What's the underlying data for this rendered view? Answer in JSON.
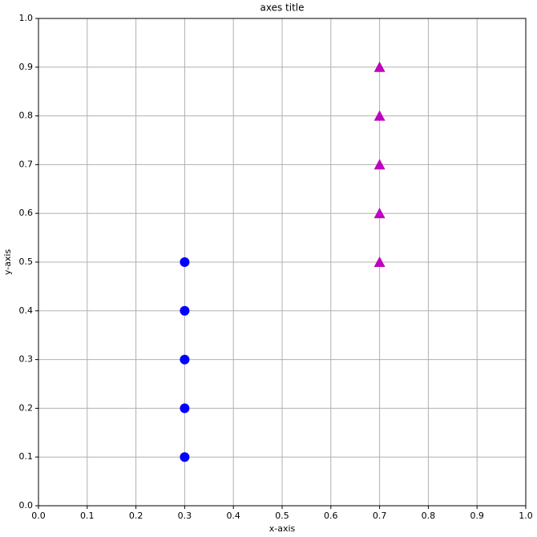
{
  "chart_data": {
    "type": "scatter",
    "title": "axes title",
    "x_label": "x-axis",
    "y_label": "y-axis",
    "series": [
      {
        "color": "#0000ff",
        "marker": "circle",
        "x": [
          0.3,
          0.3,
          0.3,
          0.3,
          0.3
        ],
        "values": [
          0.1,
          0.2,
          0.3,
          0.4,
          0.5
        ]
      },
      {
        "color": "#bf00bf",
        "marker": "triangle",
        "x": [
          0.7,
          0.7,
          0.7,
          0.7,
          0.7
        ],
        "values": [
          0.5,
          0.6,
          0.7,
          0.8,
          0.9
        ]
      }
    ],
    "xlim": [
      0,
      1
    ],
    "ylim": [
      0,
      1
    ],
    "xticks": [
      {
        "value": 0,
        "label": "0.0"
      },
      0.1,
      0.2,
      0.3,
      0.4,
      0.5,
      0.6,
      0.7,
      0.8,
      0.9,
      {
        "value": 1,
        "label": "1.0"
      }
    ],
    "yticks": [
      {
        "value": 0,
        "label": "0.0"
      },
      0.1,
      0.2,
      0.3,
      0.4,
      0.5,
      0.6,
      0.7,
      0.8,
      0.9,
      {
        "value": 1,
        "label": "1.0"
      }
    ],
    "grid": true
  }
}
